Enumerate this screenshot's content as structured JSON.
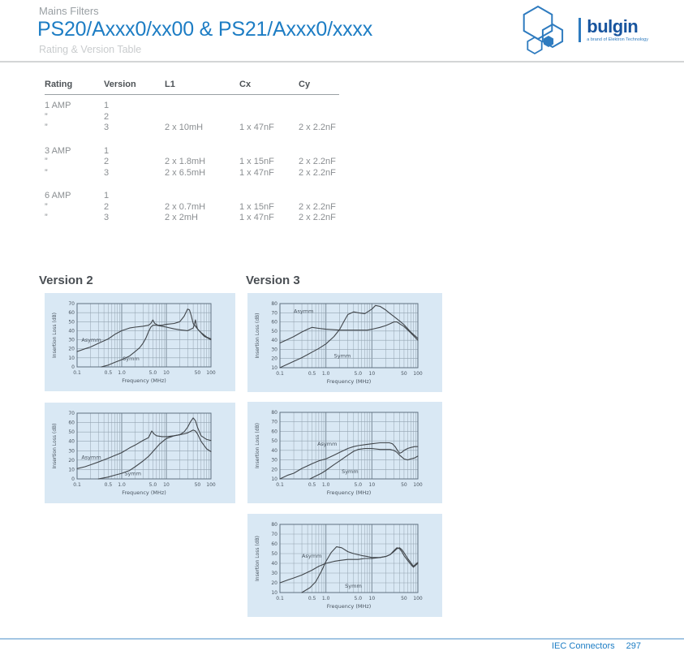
{
  "header": {
    "category": "Mains Filters",
    "title": "PS20/Axxx0/xx00 & PS21/Axxx0/xxxx",
    "subtitle": "Rating & Version Table"
  },
  "logo": {
    "wordmark": "bulgin",
    "tagline": "a brand of Elektron Technology"
  },
  "table": {
    "headers": [
      "Rating",
      "Version",
      "L1",
      "Cx",
      "Cy"
    ],
    "groups": [
      {
        "rows": [
          [
            "1 AMP",
            "1",
            "",
            "",
            ""
          ],
          [
            "”",
            "2",
            "",
            "",
            ""
          ],
          [
            "”",
            "3",
            "2 x 10mH",
            "1 x 47nF",
            "2 x 2.2nF"
          ]
        ]
      },
      {
        "rows": [
          [
            "3 AMP",
            "1",
            "",
            "",
            ""
          ],
          [
            "”",
            "2",
            "2 x 1.8mH",
            "1 x 15nF",
            "2 x 2.2nF"
          ],
          [
            "”",
            "3",
            "2 x 6.5mH",
            "1 x 47nF",
            "2 x 2.2nF"
          ]
        ]
      },
      {
        "rows": [
          [
            "6 AMP",
            "1",
            "",
            "",
            ""
          ],
          [
            "”",
            "2",
            "2 x 0.7mH",
            "1 x 15nF",
            "2 x 2.2nF"
          ],
          [
            "”",
            "3",
            "2 x 2mH",
            "1 x 47nF",
            "2 x 2.2nF"
          ]
        ]
      }
    ]
  },
  "sections": {
    "left": "Version 2",
    "right": "Version 3"
  },
  "footer": {
    "section": "IEC Connectors",
    "page": "297"
  },
  "colors": {
    "accent_blue": "#1d7dc4",
    "logo_blue": "#17549e",
    "panel_blue": "#d9e8f4",
    "grid": "#93a3b0",
    "grid_major": "#7b8c9a",
    "curve": "#41464b",
    "chart_text": "#4a5560"
  },
  "chart_data": [
    {
      "type": "line",
      "title": "Version 2 insertion loss (upper)",
      "xlabel": "Frequency (MHz)",
      "ylabel": "Insertion Loss (dB)",
      "xscale": "log",
      "xlim": [
        0.1,
        100
      ],
      "ylim": [
        0,
        70
      ],
      "yticks": [
        0,
        10,
        20,
        30,
        40,
        50,
        60,
        70
      ],
      "xticks": [
        0.1,
        0.5,
        1,
        5,
        10,
        50,
        100
      ],
      "xtick_labels": [
        "0.1",
        "0.5",
        "1.0",
        "5.0",
        "10",
        "50",
        "100"
      ],
      "grid": true,
      "series": [
        {
          "name": "Asymm",
          "label_at": [
            0.125,
            28
          ],
          "x": [
            0.1,
            0.15,
            0.2,
            0.3,
            0.5,
            0.7,
            1,
            1.5,
            2,
            3,
            4,
            4.5,
            5,
            5.5,
            6.5,
            8,
            10,
            15,
            20,
            25,
            30,
            33,
            36,
            40,
            50,
            70,
            100
          ],
          "y": [
            17,
            20,
            22,
            26,
            31,
            36,
            40,
            43,
            44,
            45,
            46,
            48,
            52,
            48,
            46,
            46,
            47,
            48,
            50,
            56,
            64,
            63,
            57,
            48,
            42,
            34,
            30
          ]
        },
        {
          "name": "Symm",
          "label_at": [
            1.05,
            7
          ],
          "x": [
            0.35,
            0.5,
            0.7,
            1,
            1.5,
            2,
            2.5,
            3,
            3.5,
            4,
            4.5,
            5,
            6,
            8,
            10,
            15,
            20,
            30,
            40,
            43,
            45,
            47,
            50,
            60,
            80,
            100
          ],
          "y": [
            0,
            2,
            5,
            8,
            12,
            17,
            21,
            26,
            32,
            39,
            44,
            46,
            46,
            45,
            44,
            42,
            41,
            40,
            43,
            48,
            52,
            46,
            42,
            38,
            33,
            31
          ]
        }
      ]
    },
    {
      "type": "line",
      "title": "Version 2 insertion loss (lower)",
      "xlabel": "Frequency (MHz)",
      "ylabel": "Insertion Loss (dB)",
      "xscale": "log",
      "xlim": [
        0.1,
        100
      ],
      "ylim": [
        0,
        70
      ],
      "yticks": [
        0,
        10,
        20,
        30,
        40,
        50,
        60,
        70
      ],
      "xticks": [
        0.1,
        0.5,
        1,
        5,
        10,
        50,
        100
      ],
      "xtick_labels": [
        "0.1",
        "0.5",
        "1.0",
        "5.0",
        "10",
        "50",
        "100"
      ],
      "grid": true,
      "series": [
        {
          "name": "Asymm",
          "label_at": [
            0.125,
            21
          ],
          "x": [
            0.1,
            0.15,
            0.2,
            0.3,
            0.5,
            0.7,
            1,
            1.5,
            2,
            3,
            4,
            4.7,
            5.3,
            6,
            8,
            10,
            15,
            20,
            25,
            30,
            35,
            40,
            45,
            50,
            60,
            80,
            100
          ],
          "y": [
            11,
            13,
            15,
            18,
            22,
            25,
            28,
            33,
            36,
            41,
            44,
            51,
            48,
            46,
            45,
            45,
            46,
            47,
            50,
            55,
            61,
            65,
            62,
            55,
            46,
            42,
            41
          ]
        },
        {
          "name": "Symm",
          "label_at": [
            1.15,
            4
          ],
          "x": [
            0.3,
            0.5,
            0.7,
            1,
            1.5,
            2,
            3,
            4,
            5,
            7,
            10,
            15,
            20,
            25,
            30,
            40,
            45,
            50,
            60,
            80,
            100
          ],
          "y": [
            0,
            2,
            4,
            6,
            9,
            13,
            19,
            24,
            29,
            37,
            43,
            46,
            47,
            48,
            49,
            52,
            51,
            48,
            40,
            32,
            29
          ]
        }
      ]
    },
    {
      "type": "line",
      "title": "Version 3 insertion loss (upper)",
      "xlabel": "Frequency (MHz)",
      "ylabel": "Insertion Loss (dB)",
      "xscale": "log",
      "xlim": [
        0.1,
        100
      ],
      "ylim": [
        10,
        80
      ],
      "yticks": [
        10,
        20,
        30,
        40,
        50,
        60,
        70,
        80
      ],
      "xticks": [
        0.1,
        0.5,
        1,
        5,
        10,
        50,
        100
      ],
      "xtick_labels": [
        "0.1",
        "0.5",
        "1.0",
        "5.0",
        "10",
        "50",
        "100"
      ],
      "grid": true,
      "series": [
        {
          "name": "Asymm",
          "label_at": [
            0.2,
            70
          ],
          "x": [
            0.1,
            0.15,
            0.2,
            0.3,
            0.4,
            0.5,
            0.7,
            1,
            2,
            3,
            5,
            8,
            10,
            15,
            20,
            25,
            30,
            35,
            40,
            50,
            70,
            100
          ],
          "y": [
            37,
            41,
            44,
            49,
            52,
            54,
            53,
            52,
            51,
            51,
            51,
            51,
            52,
            54,
            56,
            58,
            60,
            60,
            58,
            55,
            48,
            40
          ]
        },
        {
          "name": "Symm",
          "label_at": [
            1.5,
            21
          ],
          "x": [
            0.1,
            0.2,
            0.3,
            0.5,
            0.7,
            1,
            1.5,
            2,
            2.5,
            3,
            4,
            5,
            7,
            10,
            12,
            15,
            20,
            25,
            30,
            40,
            50,
            70,
            100
          ],
          "y": [
            10,
            17,
            21,
            27,
            31,
            36,
            44,
            52,
            61,
            68,
            71,
            70,
            69,
            74,
            78,
            77,
            73,
            69,
            66,
            61,
            57,
            49,
            42
          ]
        }
      ]
    },
    {
      "type": "line",
      "title": "Version 3 insertion loss (middle)",
      "xlabel": "Frequency (MHz)",
      "ylabel": "Insertion Loss (dB)",
      "xscale": "log",
      "xlim": [
        0.1,
        100
      ],
      "ylim": [
        10,
        80
      ],
      "yticks": [
        10,
        20,
        30,
        40,
        50,
        60,
        70,
        80
      ],
      "xticks": [
        0.1,
        0.5,
        1,
        5,
        10,
        50,
        100
      ],
      "xtick_labels": [
        "0.1",
        "0.5",
        "1.0",
        "5.0",
        "10",
        "50",
        "100"
      ],
      "grid": true,
      "series": [
        {
          "name": "Asymm",
          "label_at": [
            0.65,
            45
          ],
          "x": [
            0.1,
            0.15,
            0.2,
            0.3,
            0.5,
            0.7,
            1,
            1.5,
            2,
            3,
            4,
            5,
            7,
            10,
            15,
            20,
            24,
            28,
            32,
            36,
            40,
            45,
            50,
            60,
            70,
            85,
            100
          ],
          "y": [
            10,
            14,
            16,
            21,
            26,
            29,
            31,
            35,
            38,
            42,
            44,
            45,
            46,
            47,
            48,
            48,
            48,
            47,
            44,
            40,
            37,
            38,
            40,
            42,
            43,
            44,
            44
          ]
        },
        {
          "name": "Symm",
          "label_at": [
            2.2,
            16
          ],
          "x": [
            0.45,
            0.6,
            0.8,
            1,
            1.5,
            2,
            3,
            4,
            5,
            7,
            10,
            15,
            20,
            25,
            30,
            35,
            40,
            45,
            50,
            60,
            70,
            85,
            100
          ],
          "y": [
            10,
            13,
            16,
            19,
            25,
            29,
            35,
            39,
            41,
            42,
            42,
            41,
            41,
            41,
            40,
            38,
            35,
            33,
            31,
            30,
            31,
            32,
            34
          ]
        }
      ]
    },
    {
      "type": "line",
      "title": "Version 3 insertion loss (lower)",
      "xlabel": "Frequency (MHz)",
      "ylabel": "Insertion Loss (dB)",
      "xscale": "log",
      "xlim": [
        0.1,
        100
      ],
      "ylim": [
        10,
        80
      ],
      "yticks": [
        10,
        20,
        30,
        40,
        50,
        60,
        70,
        80
      ],
      "xticks": [
        0.1,
        0.5,
        1,
        5,
        10,
        50,
        100
      ],
      "xtick_labels": [
        "0.1",
        "0.5",
        "1.0",
        "5.0",
        "10",
        "50",
        "100"
      ],
      "grid": true,
      "series": [
        {
          "name": "Asymm",
          "label_at": [
            0.3,
            46
          ],
          "x": [
            0.1,
            0.15,
            0.2,
            0.3,
            0.5,
            0.7,
            1,
            1.5,
            2,
            3,
            5,
            7,
            10,
            15,
            20,
            25,
            30,
            35,
            40,
            45,
            50,
            60,
            70,
            80,
            100
          ],
          "y": [
            20,
            23,
            25,
            28,
            33,
            37,
            40,
            42,
            43,
            44,
            44,
            45,
            45,
            46,
            47,
            49,
            53,
            56,
            55,
            52,
            48,
            43,
            39,
            36,
            40
          ]
        },
        {
          "name": "Symm",
          "label_at": [
            2.6,
            15
          ],
          "x": [
            0.3,
            0.45,
            0.6,
            0.8,
            1,
            1.3,
            1.7,
            2.2,
            3,
            4,
            6,
            8,
            10,
            15,
            20,
            25,
            30,
            35,
            40,
            45,
            50,
            60,
            80,
            100
          ],
          "y": [
            10,
            15,
            21,
            32,
            42,
            51,
            57,
            56,
            52,
            50,
            48,
            47,
            46,
            46,
            47,
            49,
            52,
            55,
            56,
            54,
            51,
            45,
            37,
            41
          ]
        }
      ]
    }
  ]
}
